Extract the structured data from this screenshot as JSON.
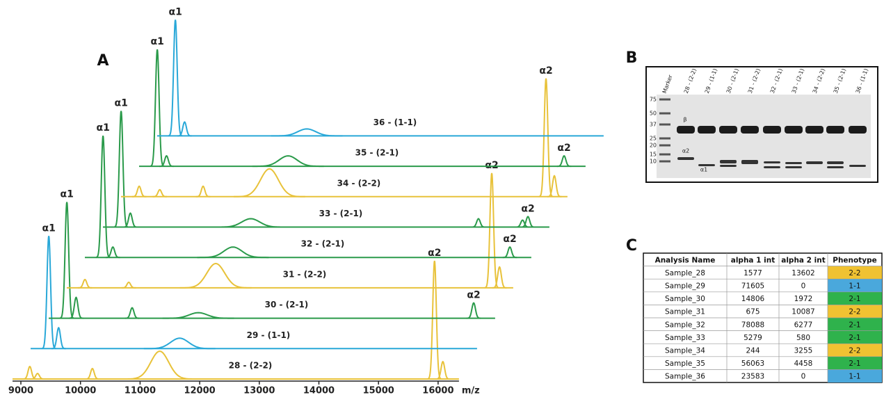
{
  "figure": {
    "panel_a": {
      "label": "A",
      "xlabel": "m/z",
      "xlim": [
        8860,
        16350
      ],
      "xticks": [
        9000,
        10000,
        11000,
        12000,
        13000,
        14000,
        15000,
        16000
      ],
      "spectra": [
        {
          "name": "28 - (2-2)",
          "color": "#e8c23a",
          "peaks": [
            {
              "mz": 15940,
              "intensity": 170,
              "label": "α2"
            },
            {
              "mz": 16080,
              "intensity": 25
            },
            {
              "mz": 11330,
              "intensity": 40,
              "shape": "broad"
            },
            {
              "mz": 9150,
              "intensity": 18
            },
            {
              "mz": 9280,
              "intensity": 8
            },
            {
              "mz": 10200,
              "intensity": 15
            }
          ]
        },
        {
          "name": "29 - (1-1)",
          "color": "#29a8d8",
          "peaks": [
            {
              "mz": 9165,
              "intensity": 162,
              "label": "α1"
            },
            {
              "mz": 9330,
              "intensity": 30
            },
            {
              "mz": 11360,
              "intensity": 15,
              "shape": "broad"
            }
          ]
        },
        {
          "name": "30 - (2-1)",
          "color": "#2a9a4a",
          "peaks": [
            {
              "mz": 9165,
              "intensity": 167,
              "label": "α1"
            },
            {
              "mz": 9320,
              "intensity": 30
            },
            {
              "mz": 10260,
              "intensity": 15
            },
            {
              "mz": 11370,
              "intensity": 8,
              "shape": "broad"
            },
            {
              "mz": 15990,
              "intensity": 22,
              "label": "α2"
            }
          ]
        },
        {
          "name": "31 - (2-2)",
          "color": "#e8c23a",
          "peaks": [
            {
              "mz": 9165,
              "intensity": 12
            },
            {
              "mz": 9900,
              "intensity": 8
            },
            {
              "mz": 11360,
              "intensity": 35,
              "shape": "broad"
            },
            {
              "mz": 15990,
              "intensity": 165,
              "label": "α2"
            },
            {
              "mz": 16120,
              "intensity": 30
            }
          ]
        },
        {
          "name": "32 - (2-1)",
          "color": "#2a9a4a",
          "peaks": [
            {
              "mz": 9165,
              "intensity": 175,
              "label": "α1"
            },
            {
              "mz": 9330,
              "intensity": 15
            },
            {
              "mz": 11345,
              "intensity": 15,
              "shape": "broad"
            },
            {
              "mz": 15990,
              "intensity": 15,
              "label": "α2"
            }
          ]
        },
        {
          "name": "33 - (2-1)",
          "color": "#2a9a4a",
          "peaks": [
            {
              "mz": 9165,
              "intensity": 167,
              "label": "α1"
            },
            {
              "mz": 9320,
              "intensity": 20
            },
            {
              "mz": 11340,
              "intensity": 12,
              "shape": "broad"
            },
            {
              "mz": 15160,
              "intensity": 12
            },
            {
              "mz": 15900,
              "intensity": 10
            },
            {
              "mz": 15990,
              "intensity": 15,
              "label": "α2"
            }
          ]
        },
        {
          "name": "34 - (2-2)",
          "color": "#e8c23a",
          "peaks": [
            {
              "mz": 9165,
              "intensity": 15
            },
            {
              "mz": 9510,
              "intensity": 10
            },
            {
              "mz": 10237,
              "intensity": 15
            },
            {
              "mz": 11350,
              "intensity": 40,
              "shape": "broad"
            },
            {
              "mz": 15990,
              "intensity": 170,
              "label": "α2"
            },
            {
              "mz": 16130,
              "intensity": 30
            }
          ]
        },
        {
          "name": "35 - (2-1)",
          "color": "#2a9a4a",
          "peaks": [
            {
              "mz": 9165,
              "intensity": 168,
              "label": "α1"
            },
            {
              "mz": 9320,
              "intensity": 15
            },
            {
              "mz": 11360,
              "intensity": 15,
              "shape": "broad"
            },
            {
              "mz": 15990,
              "intensity": 15,
              "label": "α2"
            }
          ]
        },
        {
          "name": "36 - (1-1)",
          "color": "#29a8d8",
          "peaks": [
            {
              "mz": 9165,
              "intensity": 167,
              "label": "α1"
            },
            {
              "mz": 9320,
              "intensity": 20
            },
            {
              "mz": 11370,
              "intensity": 10,
              "shape": "broad"
            }
          ]
        }
      ]
    },
    "panel_b": {
      "label": "B",
      "lanes": [
        "Marker",
        "28 - (2-2)",
        "29 - (1-1)",
        "30 - (2-1)",
        "31 - (2-2)",
        "32 - (2-1)",
        "33 - (2-1)",
        "34 - (2-2)",
        "35 - (2-1)",
        "36 - (1-1)"
      ],
      "markers": [
        "75",
        "50",
        "37",
        "25",
        "20",
        "15",
        "10"
      ],
      "annotations": [
        "β",
        "α2",
        "α1"
      ]
    },
    "panel_c": {
      "label": "C",
      "columns": [
        "Analysis Name",
        "alpha 1 int",
        "alpha 2 int",
        "Phenotype"
      ],
      "rows": [
        [
          "Sample_28",
          1577,
          13602,
          "2-2"
        ],
        [
          "Sample_29",
          71605,
          0,
          "1-1"
        ],
        [
          "Sample_30",
          14806,
          1972,
          "2-1"
        ],
        [
          "Sample_31",
          675,
          10087,
          "2-2"
        ],
        [
          "Sample_32",
          78088,
          6277,
          "2-1"
        ],
        [
          "Sample_33",
          5279,
          580,
          "2-1"
        ],
        [
          "Sample_34",
          244,
          3255,
          "2-2"
        ],
        [
          "Sample_35",
          56063,
          4458,
          "2-1"
        ],
        [
          "Sample_36",
          23583,
          0,
          "1-1"
        ]
      ],
      "phenotype_colors": {
        "2-2": "#f0c232",
        "1-1": "#4aa8dc",
        "2-1": "#2fb24c"
      }
    }
  }
}
